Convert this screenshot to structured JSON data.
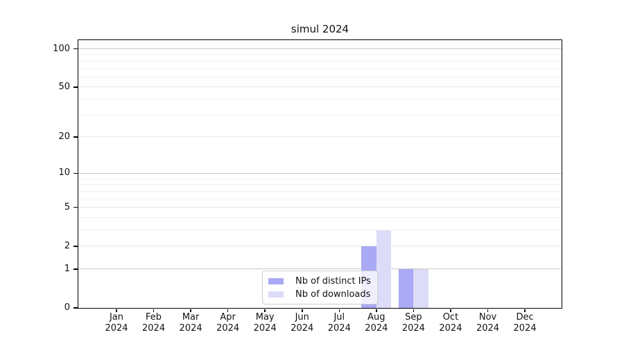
{
  "chart_data": {
    "type": "bar",
    "title": "simul 2024",
    "x_months": [
      "Jan",
      "Feb",
      "Mar",
      "Apr",
      "May",
      "Jun",
      "Jul",
      "Aug",
      "Sep",
      "Oct",
      "Nov",
      "Dec"
    ],
    "x_year": "2024",
    "y_scale": "log1p",
    "ylim": [
      0,
      116
    ],
    "y_axis_ticks": [
      0,
      1,
      2,
      5,
      10,
      20,
      50,
      100
    ],
    "gridlines": {
      "major": [
        1,
        10,
        100
      ],
      "mid": [
        2,
        5,
        20,
        50
      ],
      "minor": [
        3,
        4,
        6,
        7,
        8,
        9,
        30,
        40,
        60,
        70,
        80,
        90
      ]
    },
    "grid_colors": {
      "major": "#c8c8c8",
      "mid": "#e6e6e6",
      "minor": "#f1f1f1"
    },
    "series": [
      {
        "name": "Nb of distinct IPs",
        "color": "#a9a9f5",
        "values": [
          0,
          0,
          0,
          0,
          0,
          0,
          0,
          2,
          1,
          0,
          0,
          0
        ]
      },
      {
        "name": "Nb of downloads",
        "color": "#dcdcf8",
        "values": [
          0,
          0,
          0,
          0,
          0,
          0,
          0,
          3,
          1,
          0,
          0,
          0
        ]
      }
    ],
    "legend_position": "lower center"
  }
}
